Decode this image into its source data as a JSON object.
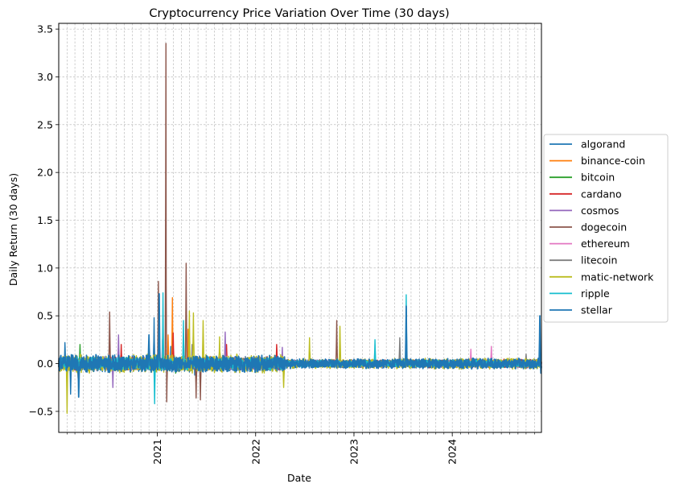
{
  "chart_data": {
    "type": "line",
    "title": "Cryptocurrency Price Variation Over Time (30 days)",
    "xlabel": "Date",
    "ylabel": "Daily Return (30 days)",
    "xlim": [
      "2020-01-01",
      "2024-11-27"
    ],
    "ylim": [
      -0.72,
      3.56
    ],
    "yticks": [
      -0.5,
      0.0,
      0.5,
      1.0,
      1.5,
      2.0,
      2.5,
      3.0,
      3.5
    ],
    "ytick_labels": [
      "−0.5",
      "0.0",
      "0.5",
      "1.0",
      "1.5",
      "2.0",
      "2.5",
      "3.0",
      "3.5"
    ],
    "xticks_major": [
      "2021-01-01",
      "2022-01-01",
      "2023-01-01",
      "2024-01-01"
    ],
    "xtick_labels": [
      "2021",
      "2022",
      "2023",
      "2024"
    ],
    "grid": true,
    "legend_position": "right-outside",
    "series": [
      {
        "name": "algorand",
        "color": "#1f77b4",
        "base_amp": 0.07,
        "spikes": [
          [
            "2020-01-24",
            0.22
          ],
          [
            "2020-02-14",
            -0.32
          ],
          [
            "2020-12-20",
            0.48
          ],
          [
            "2021-02-20",
            0.18
          ],
          [
            "2021-05-20",
            -0.12
          ]
        ]
      },
      {
        "name": "binance-coin",
        "color": "#ff7f0e",
        "base_amp": 0.05,
        "spikes": [
          [
            "2021-02-26",
            0.69
          ],
          [
            "2021-02-10",
            0.3
          ],
          [
            "2021-04-25",
            0.36
          ],
          [
            "2020-03-13",
            -0.15
          ]
        ]
      },
      {
        "name": "bitcoin",
        "color": "#2ca02c",
        "base_amp": 0.035,
        "spikes": [
          [
            "2020-03-20",
            0.2
          ],
          [
            "2021-01-05",
            0.25
          ],
          [
            "2021-03-10",
            -0.1
          ]
        ]
      },
      {
        "name": "cardano",
        "color": "#d62728",
        "base_amp": 0.06,
        "spikes": [
          [
            "2021-03-01",
            0.32
          ],
          [
            "2020-08-20",
            0.2
          ],
          [
            "2021-09-15",
            0.2
          ],
          [
            "2022-03-20",
            0.2
          ]
        ]
      },
      {
        "name": "cosmos",
        "color": "#9467bd",
        "base_amp": 0.06,
        "spikes": [
          [
            "2020-08-10",
            0.3
          ],
          [
            "2020-07-20",
            -0.25
          ],
          [
            "2021-09-10",
            0.33
          ],
          [
            "2022-04-10",
            0.17
          ]
        ]
      },
      {
        "name": "dogecoin",
        "color": "#8c564b",
        "base_amp": 0.05,
        "spikes": [
          [
            "2021-02-02",
            3.35
          ],
          [
            "2021-01-05",
            0.86
          ],
          [
            "2021-04-18",
            1.05
          ],
          [
            "2020-07-08",
            0.54
          ],
          [
            "2021-05-25",
            -0.36
          ],
          [
            "2021-06-10",
            -0.38
          ],
          [
            "2022-10-29",
            0.45
          ],
          [
            "2021-02-05",
            -0.4
          ]
        ]
      },
      {
        "name": "ethereum",
        "color": "#e377c2",
        "base_amp": 0.04,
        "spikes": [
          [
            "2024-05-25",
            0.18
          ],
          [
            "2021-01-20",
            0.25
          ],
          [
            "2024-03-10",
            0.15
          ]
        ]
      },
      {
        "name": "litecoin",
        "color": "#7f7f7f",
        "base_amp": 0.045,
        "spikes": [
          [
            "2023-06-20",
            0.27
          ],
          [
            "2021-05-10",
            0.2
          ],
          [
            "2024-10-01",
            0.1
          ]
        ]
      },
      {
        "name": "matic-network",
        "color": "#bcbd22",
        "base_amp": 0.08,
        "spikes": [
          [
            "2020-02-01",
            -0.52
          ],
          [
            "2021-04-30",
            0.55
          ],
          [
            "2021-05-15",
            0.53
          ],
          [
            "2022-11-10",
            0.39
          ],
          [
            "2021-08-20",
            0.28
          ],
          [
            "2022-07-20",
            0.27
          ],
          [
            "2022-04-15",
            -0.25
          ],
          [
            "2021-06-20",
            0.45
          ]
        ]
      },
      {
        "name": "ripple",
        "color": "#17becf",
        "base_amp": 0.055,
        "spikes": [
          [
            "2021-01-22",
            0.74
          ],
          [
            "2020-12-22",
            -0.42
          ],
          [
            "2023-07-14",
            0.72
          ],
          [
            "2021-04-08",
            0.45
          ],
          [
            "2023-03-20",
            0.25
          ]
        ]
      },
      {
        "name": "stellar",
        "color": "#1f77b4",
        "base_amp": 0.075,
        "spikes": [
          [
            "2021-01-08",
            0.73
          ],
          [
            "2020-03-15",
            -0.35
          ],
          [
            "2023-07-14",
            0.6
          ],
          [
            "2024-11-21",
            0.5
          ],
          [
            "2020-12-01",
            0.3
          ],
          [
            "2024-11-25",
            -0.1
          ]
        ]
      }
    ]
  }
}
